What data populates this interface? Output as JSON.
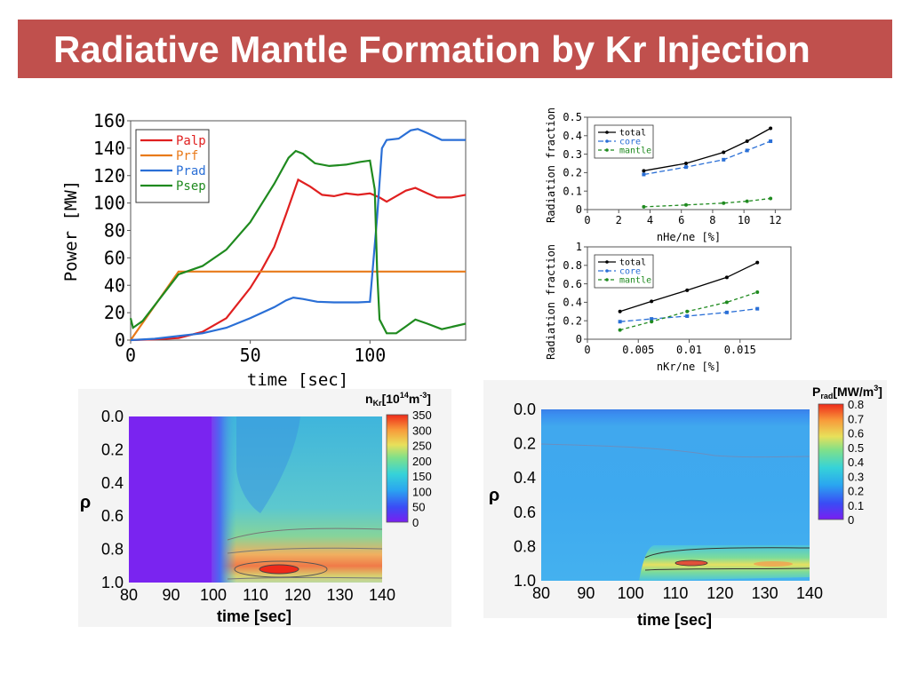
{
  "page": {
    "title": "Radiative Mantle Formation by Kr Injection",
    "accent": "#c0504d"
  },
  "chart_data": [
    {
      "id": "power",
      "type": "line",
      "xlabel": "time [sec]",
      "ylabel": "Power [MW]",
      "xlim": [
        0,
        140
      ],
      "ylim": [
        0,
        160
      ],
      "xticks": [
        "0",
        "50",
        "100"
      ],
      "yticks": [
        "0",
        "20",
        "40",
        "60",
        "80",
        "100",
        "120",
        "140",
        "160"
      ],
      "legend": "top-left",
      "series": [
        {
          "name": "Palp",
          "color": "#e02020",
          "points": [
            [
              0,
              0
            ],
            [
              10,
              0.5
            ],
            [
              20,
              1.5
            ],
            [
              30,
              6
            ],
            [
              40,
              16
            ],
            [
              50,
              38
            ],
            [
              55,
              52
            ],
            [
              60,
              68
            ],
            [
              65,
              92
            ],
            [
              70,
              117
            ],
            [
              75,
              112
            ],
            [
              80,
              106
            ],
            [
              85,
              105
            ],
            [
              90,
              107
            ],
            [
              95,
              106
            ],
            [
              100,
              107
            ],
            [
              104,
              104
            ],
            [
              107,
              101
            ],
            [
              110,
              104
            ],
            [
              115,
              109
            ],
            [
              119,
              111
            ],
            [
              124,
              107
            ],
            [
              128,
              104
            ],
            [
              134,
              104
            ],
            [
              140,
              106
            ]
          ]
        },
        {
          "name": "Prf",
          "color": "#e87a1a",
          "points": [
            [
              0,
              0
            ],
            [
              20,
              50
            ],
            [
              140,
              50
            ]
          ]
        },
        {
          "name": "Prad",
          "color": "#2a6fd6",
          "points": [
            [
              0,
              0
            ],
            [
              10,
              1
            ],
            [
              20,
              3
            ],
            [
              30,
              5
            ],
            [
              40,
              9
            ],
            [
              50,
              16
            ],
            [
              60,
              24
            ],
            [
              65,
              29
            ],
            [
              68,
              31
            ],
            [
              72,
              30
            ],
            [
              78,
              28
            ],
            [
              85,
              27.5
            ],
            [
              95,
              27.5
            ],
            [
              100,
              28
            ],
            [
              103,
              90
            ],
            [
              105,
              140
            ],
            [
              107,
              146
            ],
            [
              112,
              147
            ],
            [
              117,
              153
            ],
            [
              120,
              154
            ],
            [
              124,
              151
            ],
            [
              130,
              146
            ],
            [
              140,
              146
            ]
          ]
        },
        {
          "name": "Psep",
          "color": "#1f8a1f",
          "points": [
            [
              0,
              16
            ],
            [
              1,
              9
            ],
            [
              5,
              14
            ],
            [
              20,
              48
            ],
            [
              30,
              54
            ],
            [
              40,
              66
            ],
            [
              50,
              86
            ],
            [
              60,
              114
            ],
            [
              66,
              133
            ],
            [
              69,
              138
            ],
            [
              72,
              136
            ],
            [
              77,
              129
            ],
            [
              83,
              127
            ],
            [
              90,
              128
            ],
            [
              96,
              130
            ],
            [
              100,
              131
            ],
            [
              102,
              110
            ],
            [
              103,
              50
            ],
            [
              104,
              15
            ],
            [
              107,
              5
            ],
            [
              111,
              5
            ],
            [
              115,
              10
            ],
            [
              119,
              15
            ],
            [
              124,
              12
            ],
            [
              130,
              8
            ],
            [
              140,
              12
            ]
          ]
        }
      ]
    },
    {
      "id": "frac-he",
      "type": "line",
      "xlabel": "nHe/ne [%]",
      "ylabel": "Radiation fraction",
      "xlim": [
        0,
        13
      ],
      "ylim": [
        0,
        0.5
      ],
      "xticks": [
        "0",
        "2",
        "4",
        "6",
        "8",
        "10",
        "12"
      ],
      "yticks": [
        "0",
        "0.1",
        "0.2",
        "0.3",
        "0.4",
        "0.5"
      ],
      "legend": "top-left",
      "series": [
        {
          "name": "total",
          "color": "#000000",
          "points": [
            [
              3.6,
              0.21
            ],
            [
              6.3,
              0.25
            ],
            [
              8.7,
              0.31
            ],
            [
              10.2,
              0.37
            ],
            [
              11.7,
              0.44
            ]
          ]
        },
        {
          "name": "core",
          "color": "#2a6fd6",
          "points": [
            [
              3.6,
              0.19
            ],
            [
              6.3,
              0.23
            ],
            [
              8.7,
              0.27
            ],
            [
              10.2,
              0.32
            ],
            [
              11.7,
              0.37
            ]
          ]
        },
        {
          "name": "mantle",
          "color": "#1f8a1f",
          "points": [
            [
              3.6,
              0.015
            ],
            [
              6.3,
              0.025
            ],
            [
              8.7,
              0.035
            ],
            [
              10.2,
              0.045
            ],
            [
              11.7,
              0.06
            ]
          ]
        }
      ]
    },
    {
      "id": "frac-kr",
      "type": "line",
      "xlabel": "nKr/ne [%]",
      "ylabel": "Radiation fraction",
      "xlim": [
        0,
        0.02
      ],
      "ylim": [
        0,
        1
      ],
      "xticks": [
        "0",
        "0.005",
        "0.01",
        "0.015"
      ],
      "yticks": [
        "0",
        "0.2",
        "0.4",
        "0.6",
        "0.8",
        "1"
      ],
      "legend": "top-left",
      "series": [
        {
          "name": "total",
          "color": "#000000",
          "points": [
            [
              0.0032,
              0.3
            ],
            [
              0.0063,
              0.41
            ],
            [
              0.0098,
              0.53
            ],
            [
              0.0137,
              0.67
            ],
            [
              0.0167,
              0.83
            ]
          ]
        },
        {
          "name": "core",
          "color": "#2a6fd6",
          "points": [
            [
              0.0032,
              0.19
            ],
            [
              0.0063,
              0.22
            ],
            [
              0.0098,
              0.25
            ],
            [
              0.0137,
              0.29
            ],
            [
              0.0167,
              0.33
            ]
          ]
        },
        {
          "name": "mantle",
          "color": "#1f8a1f",
          "points": [
            [
              0.0032,
              0.1
            ],
            [
              0.0063,
              0.19
            ],
            [
              0.0098,
              0.3
            ],
            [
              0.0137,
              0.4
            ],
            [
              0.0167,
              0.51
            ]
          ]
        }
      ]
    },
    {
      "id": "nkr-map",
      "type": "heatmap",
      "xlabel": "time [sec]",
      "ylabel": "ρ",
      "colorbar_title": "n",
      "colorbar_title_sub": "Kr",
      "colorbar_title_unit": "[10",
      "colorbar_title_exp": "14",
      "colorbar_title_unit2": "m",
      "colorbar_title_exp2": "-3",
      "colorbar_title_close": "]",
      "xlim": [
        80,
        140
      ],
      "ylim": [
        0,
        1
      ],
      "xticks": [
        "80",
        "90",
        "100",
        "110",
        "120",
        "130",
        "140"
      ],
      "yticks": [
        "0.0",
        "0.2",
        "0.4",
        "0.6",
        "0.8",
        "1.0"
      ],
      "cbar_ticks": [
        "350",
        "300",
        "250",
        "200",
        "150",
        "100",
        "50",
        "0"
      ],
      "crange": [
        0,
        350
      ]
    },
    {
      "id": "prad-map",
      "type": "heatmap",
      "xlabel": "time [sec]",
      "ylabel": "ρ",
      "colorbar_title": "P",
      "colorbar_title_sub": "rad",
      "colorbar_title_unit": "[MW/m",
      "colorbar_title_exp": "3",
      "colorbar_title_close": "]",
      "xlim": [
        80,
        140
      ],
      "ylim": [
        0,
        1
      ],
      "xticks": [
        "80",
        "90",
        "100",
        "110",
        "120",
        "130",
        "140"
      ],
      "yticks": [
        "0.0",
        "0.2",
        "0.4",
        "0.6",
        "0.8",
        "1.0"
      ],
      "cbar_ticks": [
        "0.8",
        "0.7",
        "0.6",
        "0.5",
        "0.4",
        "0.3",
        "0.2",
        "0.1",
        "0"
      ],
      "crange": [
        0,
        0.8
      ]
    }
  ]
}
